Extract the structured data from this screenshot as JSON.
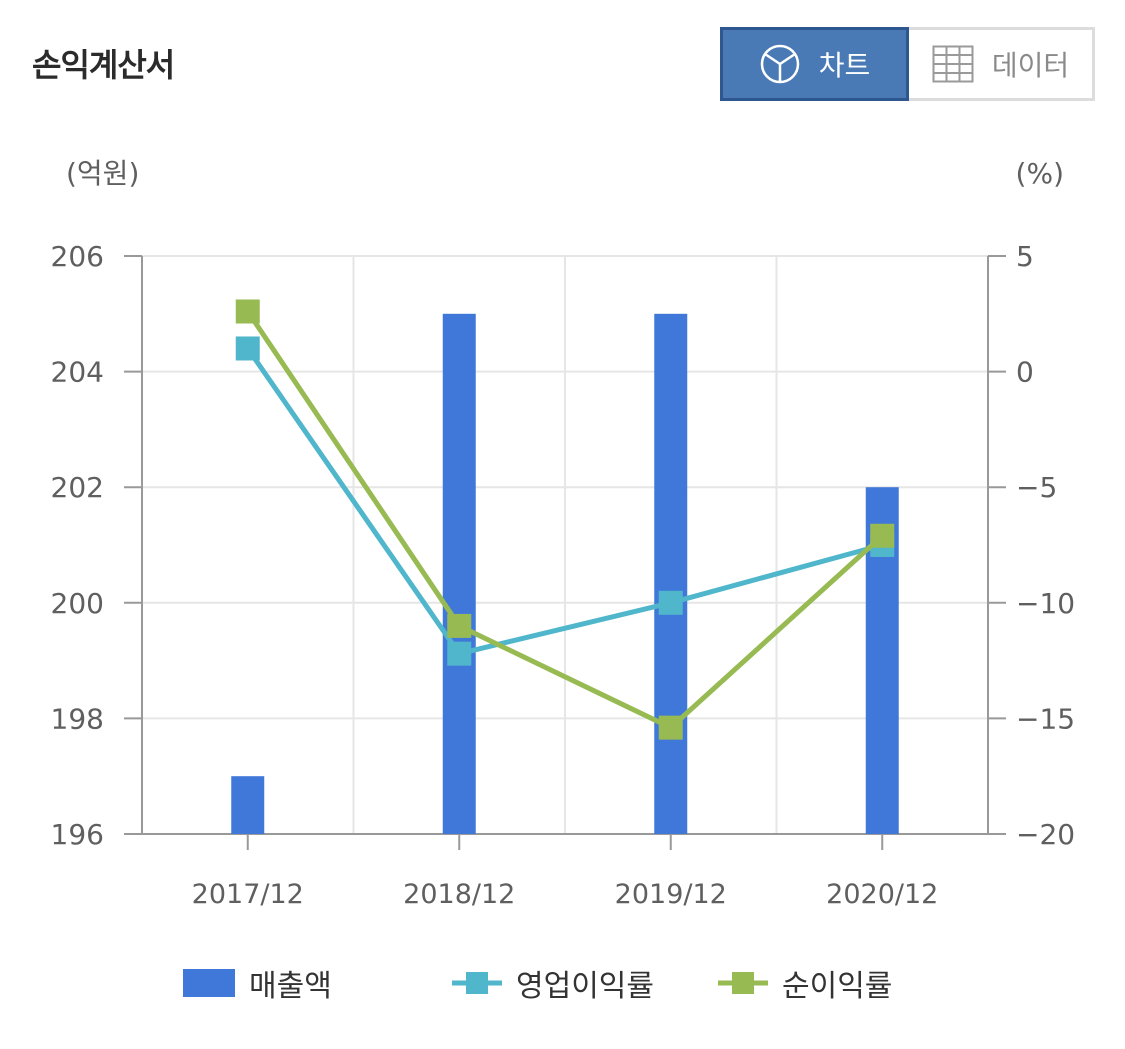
{
  "title": "손익계산서",
  "toggle": {
    "chart_label": "차트",
    "data_label": "데이터",
    "chart_icon": "pie-chart-icon",
    "data_icon": "table-grid-icon"
  },
  "colors": {
    "bar": "#3f78d8",
    "operating": "#4fb6cb",
    "net": "#97ba52",
    "active_bg": "#4a7ab6",
    "grid": "#e6e6e6",
    "axis": "#999999"
  },
  "chart_data": {
    "type": "bar",
    "categories": [
      "2017/12",
      "2018/12",
      "2019/12",
      "2020/12"
    ],
    "y_left_label": "(억원)",
    "y_right_label": "(%)",
    "y_left_range": [
      196,
      206
    ],
    "y_left_ticks": [
      206,
      204,
      202,
      200,
      198,
      196
    ],
    "y_right_range": [
      -20,
      5
    ],
    "y_right_ticks": [
      5,
      0,
      -5,
      -10,
      -15,
      -20
    ],
    "grid": true,
    "legend_position": "bottom",
    "series": [
      {
        "name": "매출액",
        "type": "bar",
        "axis": "left",
        "values": [
          197,
          205,
          205,
          202
        ]
      },
      {
        "name": "영업이익률",
        "type": "line",
        "axis": "right",
        "values": [
          1.0,
          -12.2,
          -10.0,
          -7.5
        ]
      },
      {
        "name": "순이익률",
        "type": "line",
        "axis": "right",
        "values": [
          2.6,
          -11.0,
          -15.4,
          -7.1
        ]
      }
    ]
  }
}
